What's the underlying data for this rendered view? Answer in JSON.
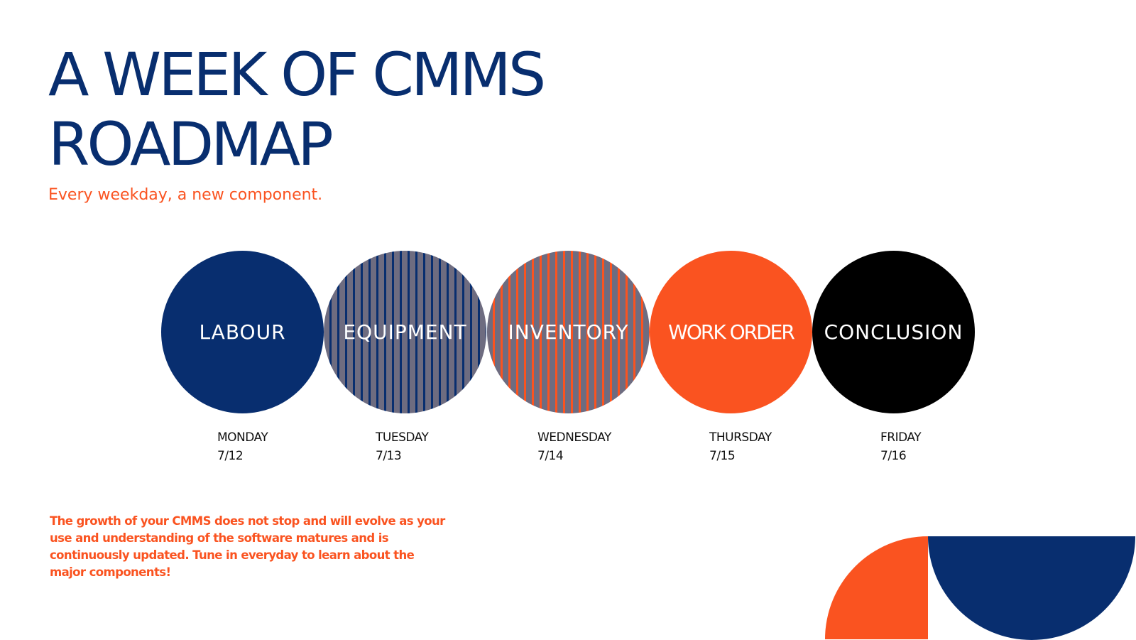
{
  "title": {
    "line1": "A WEEK OF CMMS",
    "line2": "ROADMAP"
  },
  "subtitle": "Every weekday, a new component.",
  "colors": {
    "navy": "#082e6f",
    "orange": "#fa5320",
    "gray": "#6e6c80",
    "black": "#000000"
  },
  "schedule": [
    {
      "component": "LABOUR",
      "day": "MONDAY",
      "date": "7/12",
      "style": "solid navy"
    },
    {
      "component": "EQUIPMENT",
      "day": "TUESDAY",
      "date": "7/13",
      "style": "gray with navy stripes"
    },
    {
      "component": "INVENTORY",
      "day": "WEDNESDAY",
      "date": "7/14",
      "style": "gray with orange stripes"
    },
    {
      "component": "WORK ORDER",
      "day": "THURSDAY",
      "date": "7/15",
      "style": "solid orange"
    },
    {
      "component": "CONCLUSION",
      "day": "FRIDAY",
      "date": "7/16",
      "style": "solid black"
    }
  ],
  "description": "The growth of your CMMS does not stop and will evolve as your use and understanding of the software matures and is continuously updated. Tune in everyday to learn about the major components!"
}
